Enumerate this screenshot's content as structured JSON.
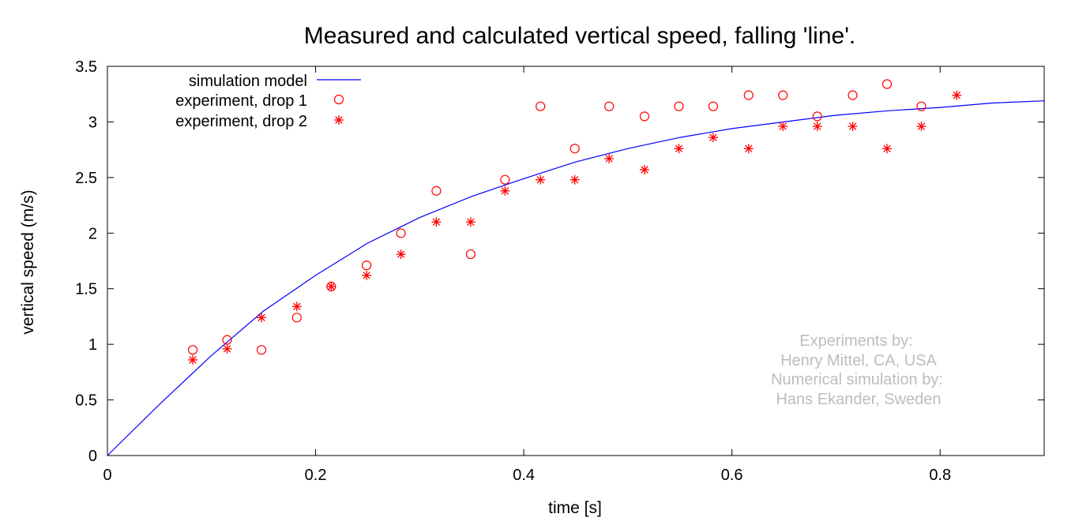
{
  "chart_data": {
    "type": "scatter",
    "title": "Measured and calculated vertical speed, falling 'line'.",
    "xlabel": "time [s]",
    "ylabel": "vertical speed (m/s)",
    "xlim": [
      0,
      0.9
    ],
    "ylim": [
      0,
      3.5
    ],
    "x_ticks": [
      0,
      0.2,
      0.4,
      0.6,
      0.8
    ],
    "x_tick_labels": [
      "0",
      "0.2",
      "0.4",
      "0.6",
      "0.8"
    ],
    "y_ticks": [
      0,
      0.5,
      1,
      1.5,
      2,
      2.5,
      3,
      3.5
    ],
    "y_tick_labels": [
      "0",
      "0.5",
      "1",
      "1.5",
      "2",
      "2.5",
      "3",
      "3.5"
    ],
    "grid": false,
    "legend_position": "top-left",
    "series": [
      {
        "name": "simulation model",
        "type": "line",
        "color": "#0000ff",
        "x": [
          0,
          0.05,
          0.1,
          0.15,
          0.2,
          0.25,
          0.3,
          0.35,
          0.4,
          0.45,
          0.5,
          0.55,
          0.6,
          0.65,
          0.7,
          0.75,
          0.8,
          0.85,
          0.9
        ],
        "y": [
          0,
          0.46,
          0.9,
          1.3,
          1.62,
          1.91,
          2.14,
          2.33,
          2.49,
          2.64,
          2.76,
          2.86,
          2.94,
          3.0,
          3.06,
          3.1,
          3.13,
          3.17,
          3.19
        ]
      },
      {
        "name": "experiment, drop 1",
        "type": "scatter",
        "marker": "circle",
        "color": "#ff0000",
        "x": [
          0.082,
          0.115,
          0.148,
          0.182,
          0.215,
          0.249,
          0.282,
          0.316,
          0.349,
          0.382,
          0.416,
          0.449,
          0.482,
          0.516,
          0.549,
          0.582,
          0.616,
          0.649,
          0.682,
          0.716,
          0.749,
          0.782
        ],
        "y": [
          0.95,
          1.04,
          0.95,
          1.24,
          1.52,
          1.71,
          2.0,
          2.38,
          1.81,
          2.48,
          3.14,
          2.76,
          3.14,
          3.05,
          3.14,
          3.14,
          3.24,
          3.24,
          3.05,
          3.24,
          3.34,
          3.14
        ]
      },
      {
        "name": "experiment, drop 2",
        "type": "scatter",
        "marker": "asterisk",
        "color": "#ff0000",
        "x": [
          0.082,
          0.115,
          0.148,
          0.182,
          0.215,
          0.249,
          0.282,
          0.316,
          0.349,
          0.382,
          0.416,
          0.449,
          0.482,
          0.516,
          0.549,
          0.582,
          0.616,
          0.649,
          0.682,
          0.716,
          0.749,
          0.782,
          0.816
        ],
        "y": [
          0.86,
          0.96,
          1.24,
          1.34,
          1.52,
          1.62,
          1.81,
          2.1,
          2.1,
          2.38,
          2.48,
          2.48,
          2.67,
          2.57,
          2.76,
          2.86,
          2.76,
          2.96,
          2.96,
          2.96,
          2.76,
          2.96,
          3.24
        ]
      }
    ],
    "annotation_lines": [
      "Experiments by:",
      "Henry Mittel, CA, USA",
      "Numerical simulation by:",
      "Hans Ekander, Sweden"
    ],
    "annotation_color": "#bdbdbd"
  }
}
